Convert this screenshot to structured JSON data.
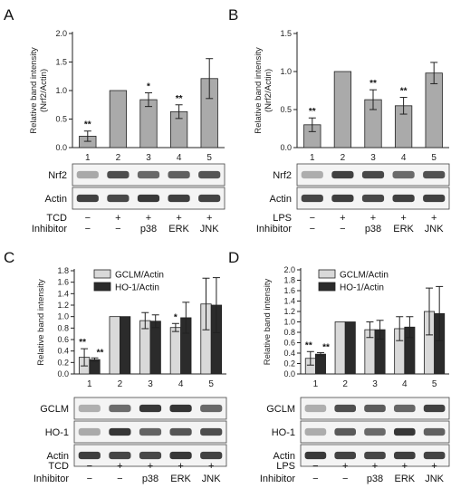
{
  "panels": [
    {
      "letter": "A",
      "chart_data": {
        "type": "bar",
        "ylabel": "Relative band intensity\n(Nrf2/Actin)",
        "ylim": [
          0,
          2.0
        ],
        "ytick_labels": [
          "0.0",
          "0.5",
          "1.0",
          "1.5",
          "2.0"
        ],
        "categories": [
          "1",
          "2",
          "3",
          "4",
          "5"
        ],
        "series": [
          {
            "color": "#aaaaaa",
            "values": [
              0.2,
              1.0,
              0.84,
              0.63,
              1.21
            ],
            "errors": [
              0.09,
              0.0,
              0.12,
              0.12,
              0.35
            ],
            "significance": [
              "**",
              "",
              "*",
              "**",
              ""
            ]
          }
        ]
      },
      "blots": [
        "Nrf2",
        "Actin"
      ],
      "treatments": [
        {
          "label": "TCD",
          "values": [
            "−",
            "+",
            "+",
            "+",
            "+"
          ]
        },
        {
          "label": "Inhibitor",
          "values": [
            "−",
            "−",
            "p38",
            "ERK",
            "JNK"
          ]
        }
      ]
    },
    {
      "letter": "B",
      "chart_data": {
        "type": "bar",
        "ylabel": "Relative band intensity\n(Nrf2/Actin)",
        "ylim": [
          0,
          1.5
        ],
        "ytick_labels": [
          "0.0",
          "0.5",
          "1.0",
          "1.5"
        ],
        "categories": [
          "1",
          "2",
          "3",
          "4",
          "5"
        ],
        "series": [
          {
            "color": "#aaaaaa",
            "values": [
              0.3,
              1.0,
              0.63,
              0.55,
              0.98
            ],
            "errors": [
              0.09,
              0.0,
              0.13,
              0.11,
              0.14
            ],
            "significance": [
              "**",
              "",
              "**",
              "**",
              ""
            ]
          }
        ]
      },
      "blots": [
        "Nrf2",
        "Actin"
      ],
      "treatments": [
        {
          "label": "LPS",
          "values": [
            "−",
            "+",
            "+",
            "+",
            "+"
          ]
        },
        {
          "label": "Inhibitor",
          "values": [
            "−",
            "−",
            "p38",
            "ERK",
            "JNK"
          ]
        }
      ]
    },
    {
      "letter": "C",
      "chart_data": {
        "type": "bar",
        "ylabel": "Relative band intensity",
        "ylim": [
          0,
          1.8
        ],
        "ytick_labels": [
          "0.0",
          "0.2",
          "0.4",
          "0.6",
          "0.8",
          "1.0",
          "1.2",
          "1.4",
          "1.6",
          "1.8"
        ],
        "categories": [
          "1",
          "2",
          "3",
          "4",
          "5"
        ],
        "legend_position": "top-right",
        "series": [
          {
            "name": "GCLM/Actin",
            "color": "#d9d9d9",
            "values": [
              0.29,
              1.0,
              0.93,
              0.81,
              1.22
            ],
            "errors": [
              0.15,
              0.0,
              0.14,
              0.07,
              0.45
            ],
            "significance": [
              "**",
              "",
              "",
              "*",
              ""
            ]
          },
          {
            "name": "HO-1/Actin",
            "color": "#2b2b2b",
            "values": [
              0.25,
              1.0,
              0.92,
              0.98,
              1.2
            ],
            "errors": [
              0.03,
              0.0,
              0.11,
              0.27,
              0.48
            ],
            "significance": [
              "**",
              "",
              "",
              "",
              ""
            ]
          }
        ]
      },
      "blots": [
        "GCLM",
        "HO-1",
        "Actin"
      ],
      "treatments": [
        {
          "label": "TCD",
          "values": [
            "−",
            "+",
            "+",
            "+",
            "+"
          ]
        },
        {
          "label": "Inhibitor",
          "values": [
            "−",
            "−",
            "p38",
            "ERK",
            "JNK"
          ]
        }
      ]
    },
    {
      "letter": "D",
      "chart_data": {
        "type": "bar",
        "ylabel": "Relative band intensity",
        "ylim": [
          0,
          2.0
        ],
        "ytick_labels": [
          "0.0",
          "0.2",
          "0.4",
          "0.6",
          "0.8",
          "1.0",
          "1.2",
          "1.4",
          "1.6",
          "1.8",
          "2.0"
        ],
        "categories": [
          "1",
          "2",
          "3",
          "4",
          "5"
        ],
        "legend_position": "top-right",
        "series": [
          {
            "name": "GCLM/Actin",
            "color": "#d9d9d9",
            "values": [
              0.3,
              1.0,
              0.85,
              0.87,
              1.2
            ],
            "errors": [
              0.13,
              0.0,
              0.15,
              0.23,
              0.45
            ],
            "significance": [
              "**",
              "",
              "",
              "",
              ""
            ]
          },
          {
            "name": "HO-1/Actin",
            "color": "#2b2b2b",
            "values": [
              0.38,
              1.0,
              0.85,
              0.9,
              1.16
            ],
            "errors": [
              0.03,
              0.0,
              0.18,
              0.2,
              0.52
            ],
            "significance": [
              "**",
              "",
              "",
              "",
              ""
            ]
          }
        ]
      },
      "blots": [
        "GCLM",
        "HO-1",
        "Actin"
      ],
      "treatments": [
        {
          "label": "LPS",
          "values": [
            "−",
            "+",
            "+",
            "+",
            "+"
          ]
        },
        {
          "label": "Inhibitor",
          "values": [
            "−",
            "−",
            "p38",
            "ERK",
            "JNK"
          ]
        }
      ]
    }
  ]
}
